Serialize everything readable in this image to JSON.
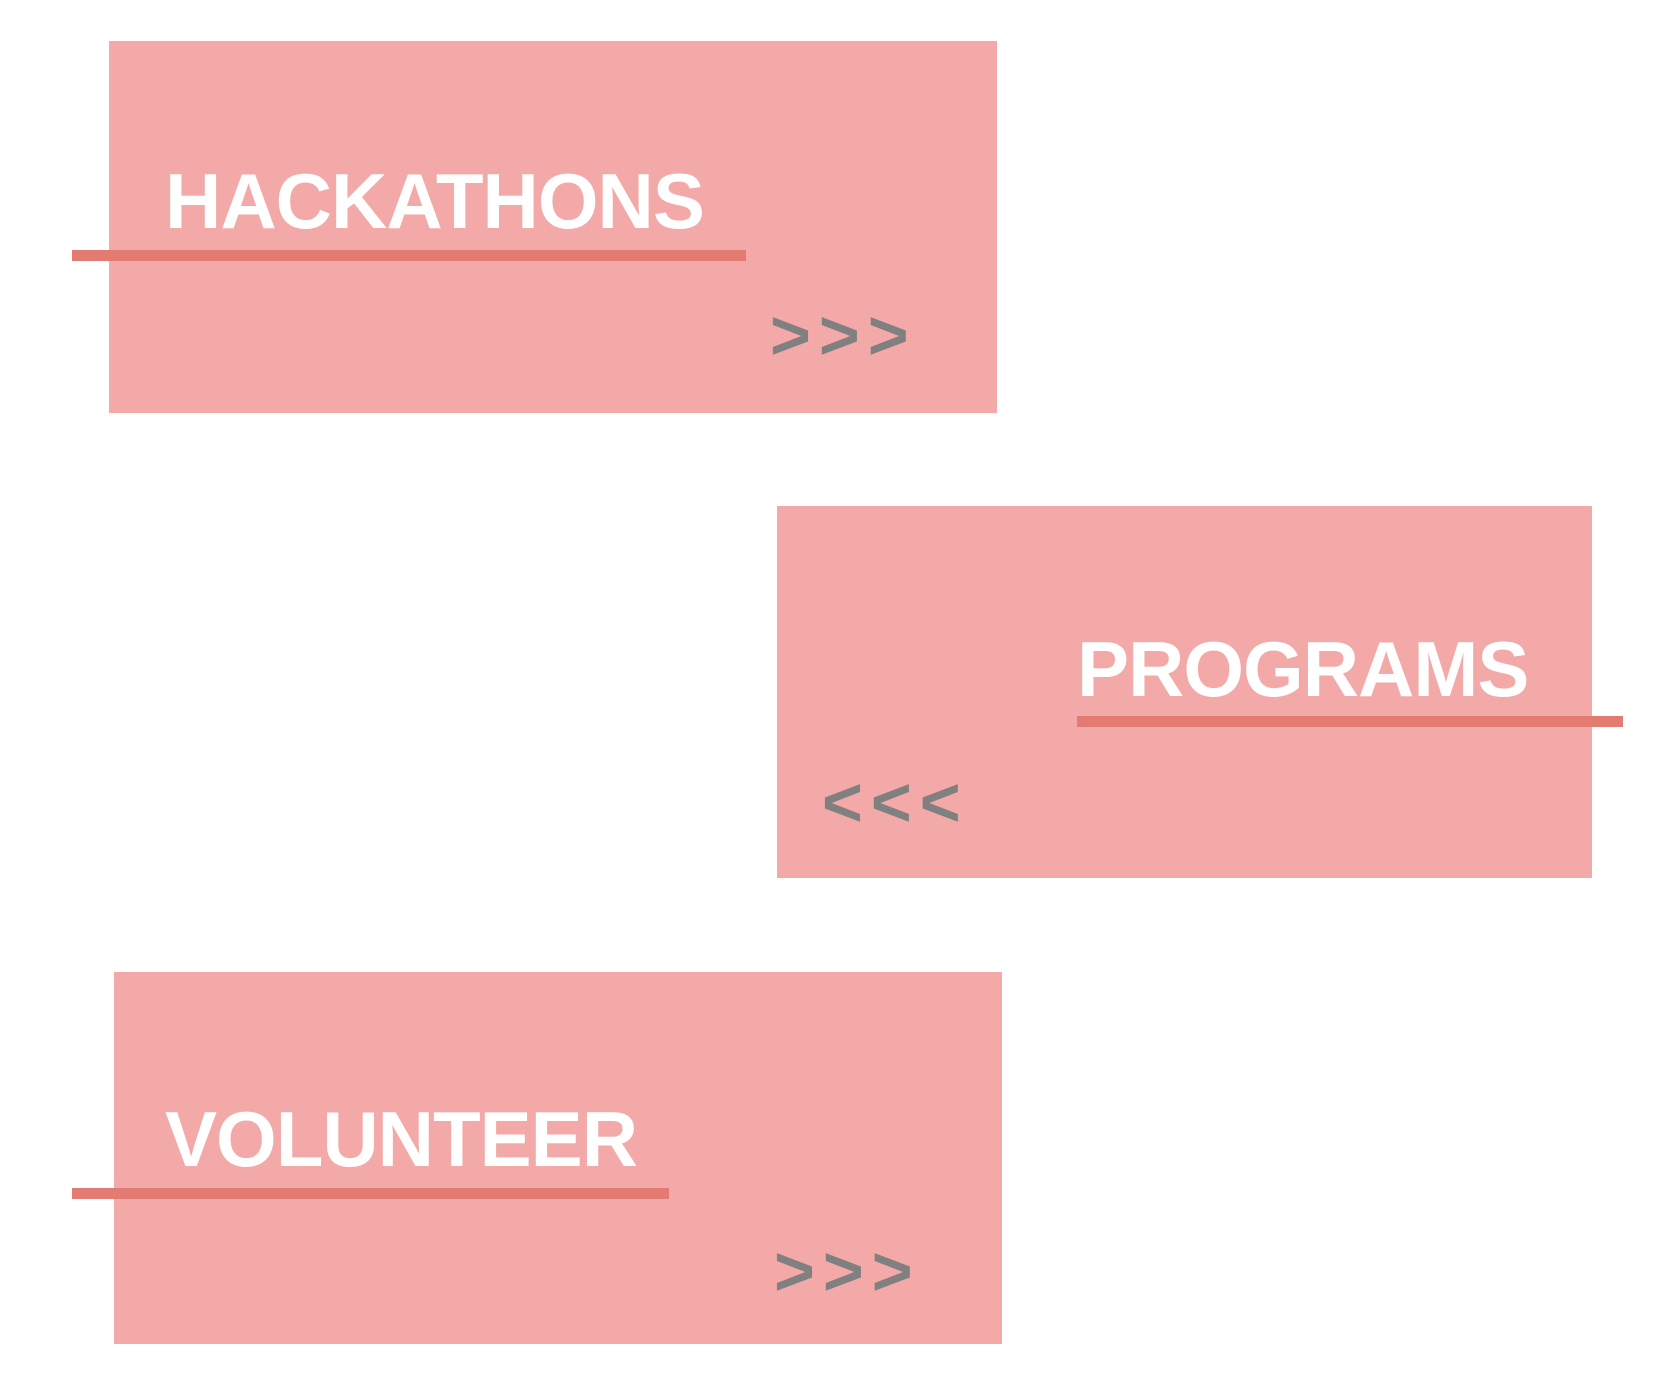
{
  "cards": {
    "hackathons": {
      "title": "HACKATHONS",
      "arrows": ">>>"
    },
    "programs": {
      "title": "PROGRAMS",
      "arrows": "<<<"
    },
    "volunteer": {
      "title": "VOLUNTEER",
      "arrows": ">>>"
    }
  },
  "colors": {
    "card_background": "#f2a9a8",
    "underline": "#e37b72",
    "title_text": "#ffffff",
    "arrow_text": "#808080",
    "page_background": "#ffffff"
  }
}
